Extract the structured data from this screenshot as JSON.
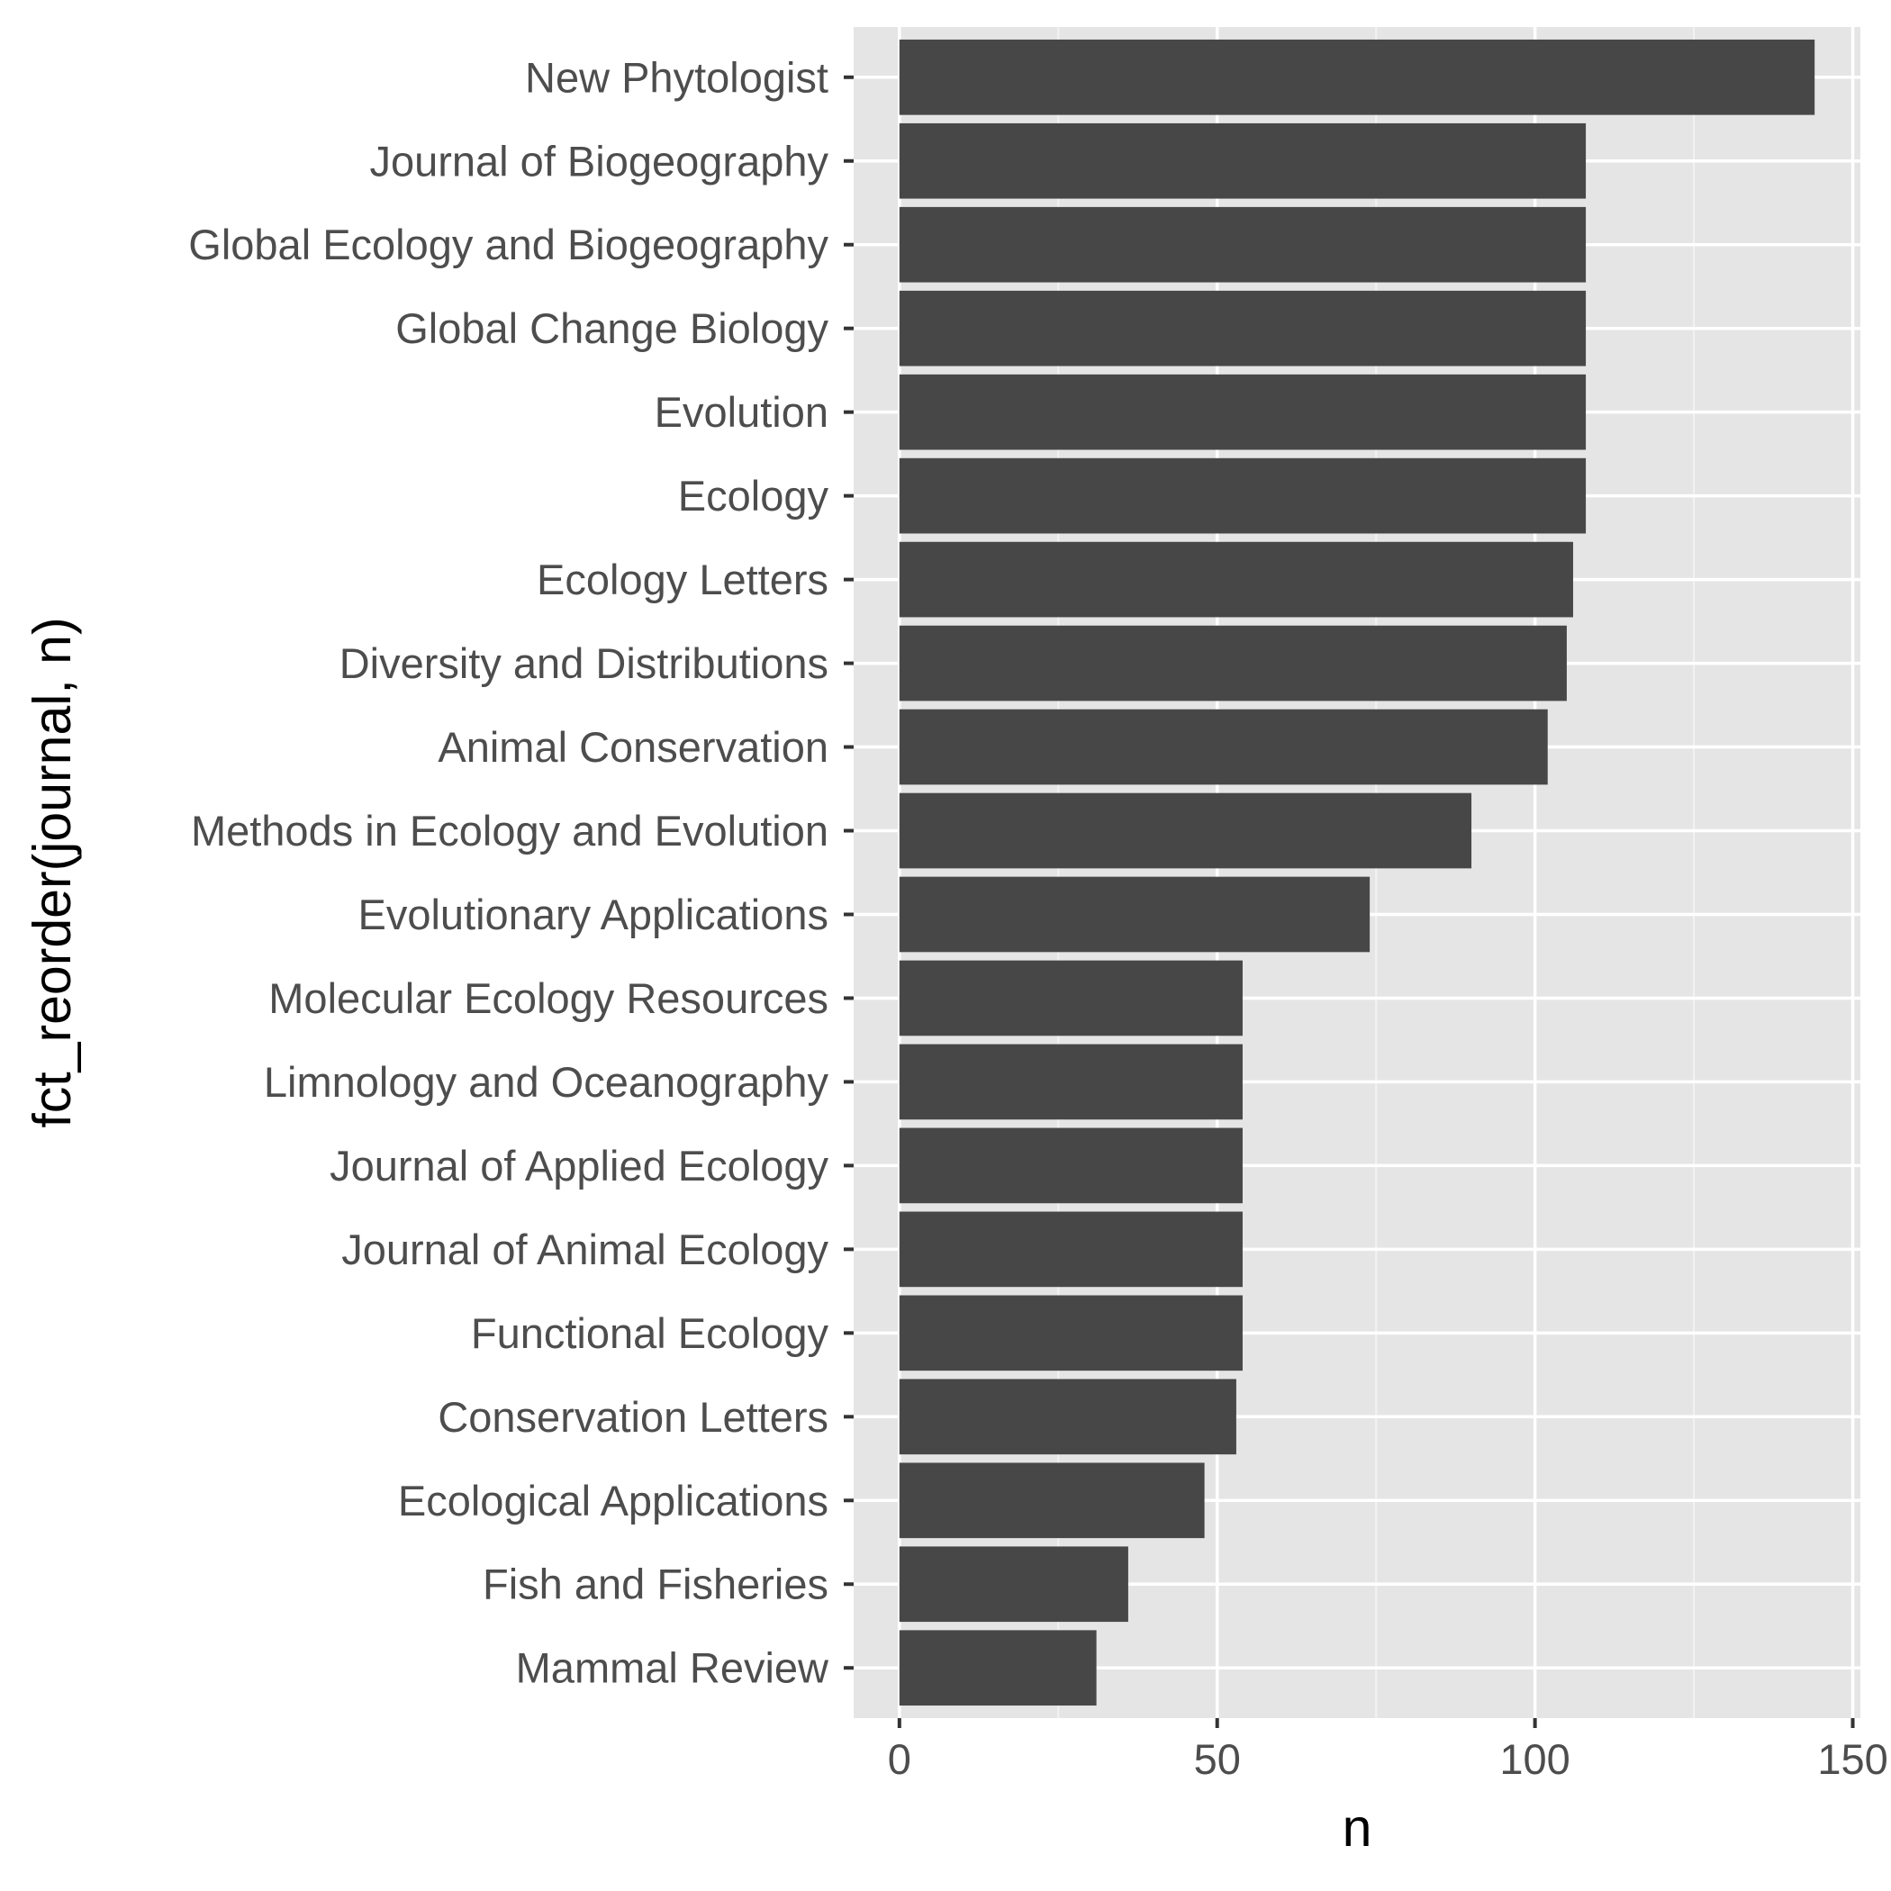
{
  "chart_data": {
    "type": "bar",
    "orientation": "horizontal",
    "title": "",
    "xlabel": "n",
    "ylabel": "fct_reorder(journal, n)",
    "xlim": [
      -7.2,
      151.2
    ],
    "x_ticks": [
      0,
      50,
      100,
      150
    ],
    "x_tick_labels": [
      "0",
      "50",
      "100",
      "150"
    ],
    "grid": true,
    "legend": "none",
    "categories": [
      "New Phytologist",
      "Journal of Biogeography",
      "Global Ecology and Biogeography",
      "Global Change Biology",
      "Evolution",
      "Ecology",
      "Ecology Letters",
      "Diversity and Distributions",
      "Animal Conservation",
      "Methods in Ecology and Evolution",
      "Evolutionary Applications",
      "Molecular Ecology Resources",
      "Limnology and Oceanography",
      "Journal of Applied Ecology",
      "Journal of Animal Ecology",
      "Functional Ecology",
      "Conservation Letters",
      "Ecological Applications",
      "Fish and Fisheries",
      "Mammal Review"
    ],
    "values": [
      144,
      108,
      108,
      108,
      108,
      108,
      106,
      105,
      102,
      90,
      74,
      54,
      54,
      54,
      54,
      54,
      53,
      48,
      36,
      31
    ],
    "colors": {
      "bar": "#474747",
      "panel": "#e5e5e5",
      "grid_major": "#ffffff",
      "grid_minor": "#f2f2f2",
      "tick_label": "#4d4d4d",
      "axis_title": "#000000",
      "tick_mark": "#333333"
    }
  }
}
